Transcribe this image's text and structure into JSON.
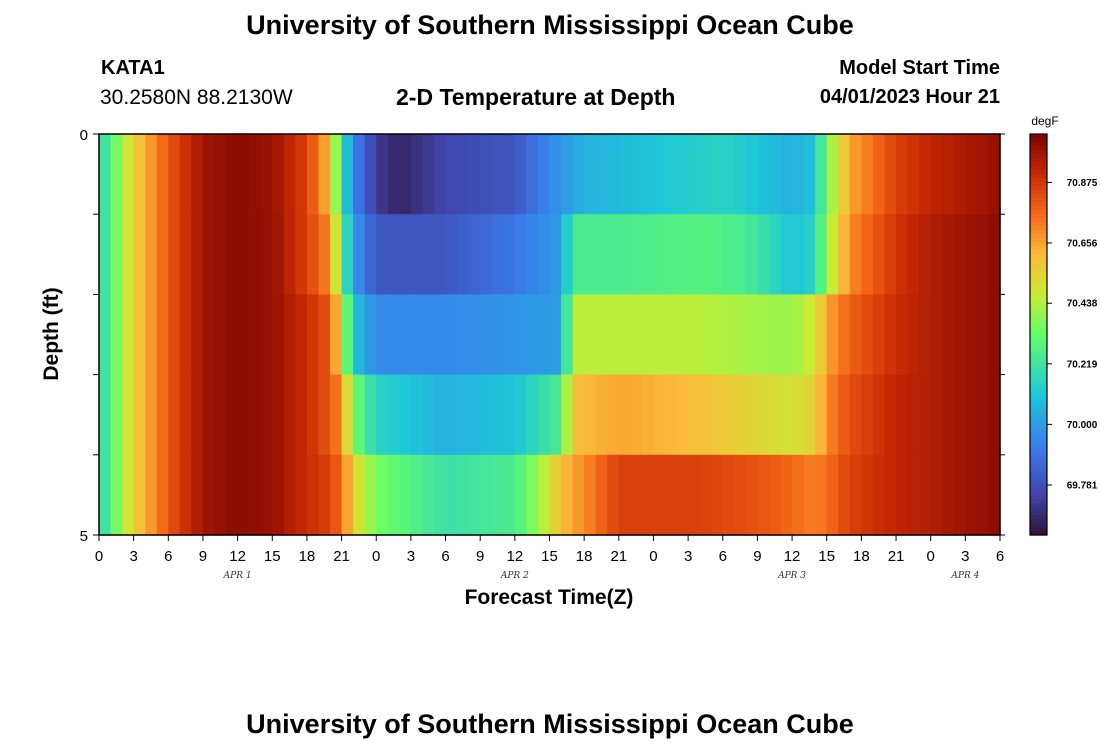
{
  "header": {
    "title": "University of Southern Mississippi Ocean Cube",
    "station": "KATA1",
    "coords": "30.2580N  88.2130W",
    "subtitle": "2-D Temperature at Depth",
    "start_label": "Model Start Time",
    "start_value": "04/01/2023 Hour 21"
  },
  "footer": {
    "title": "University of Southern Mississippi Ocean Cube"
  },
  "chart_data": {
    "type": "heatmap",
    "title": "2-D Temperature at Depth",
    "xlabel": "Forecast Time(Z)",
    "ylabel": "Depth (ft)",
    "units": "degF",
    "ylim": [
      0,
      5
    ],
    "y_tick_labels": [
      "0",
      "5"
    ],
    "x_tick_labels": [
      "0",
      "3",
      "6",
      "9",
      "12",
      "15",
      "18",
      "21",
      "0",
      "3",
      "6",
      "9",
      "12",
      "15",
      "18",
      "21",
      "0",
      "3",
      "6",
      "9",
      "12",
      "15",
      "18",
      "21",
      "0",
      "3",
      "6"
    ],
    "day_labels": [
      {
        "label": "APR 1",
        "at_tick": 4
      },
      {
        "label": "APR 2",
        "at_tick": 12
      },
      {
        "label": "APR 3",
        "at_tick": 20
      },
      {
        "label": "APR 4",
        "at_tick": 25
      }
    ],
    "hours_start": 0,
    "hours_end": 78,
    "colorbar": {
      "min": 69.6,
      "max": 71.05,
      "ticks": [
        69.781,
        70.0,
        70.219,
        70.438,
        70.656,
        70.875
      ],
      "tick_labels": [
        "69.781",
        "70.000",
        "70.219",
        "70.438",
        "70.656",
        "70.875"
      ]
    },
    "depth_layers": [
      "0-1 ft",
      "1-2 ft",
      "2-3 ft",
      "3-4 ft",
      "4-5 ft"
    ],
    "series": [
      {
        "name": "0-1 ft",
        "knots": [
          [
            0,
            70.15
          ],
          [
            3,
            70.55
          ],
          [
            6,
            70.8
          ],
          [
            9,
            70.98
          ],
          [
            12,
            71.02
          ],
          [
            15,
            70.99
          ],
          [
            18,
            70.85
          ],
          [
            20,
            70.6
          ],
          [
            21,
            70.2
          ],
          [
            22,
            69.95
          ],
          [
            24,
            69.72
          ],
          [
            26,
            69.65
          ],
          [
            30,
            69.75
          ],
          [
            36,
            69.8
          ],
          [
            39,
            69.95
          ],
          [
            42,
            70.05
          ],
          [
            48,
            70.1
          ],
          [
            54,
            70.15
          ],
          [
            60,
            70.05
          ],
          [
            62,
            70.1
          ],
          [
            63,
            70.35
          ],
          [
            65,
            70.65
          ],
          [
            69,
            70.85
          ],
          [
            72,
            70.92
          ],
          [
            78,
            71.0
          ]
        ]
      },
      {
        "name": "1-2 ft",
        "knots": [
          [
            0,
            70.15
          ],
          [
            3,
            70.55
          ],
          [
            6,
            70.8
          ],
          [
            9,
            70.98
          ],
          [
            12,
            71.02
          ],
          [
            15,
            71.0
          ],
          [
            18,
            70.85
          ],
          [
            20,
            70.7
          ],
          [
            21,
            70.3
          ],
          [
            22,
            70.0
          ],
          [
            24,
            69.8
          ],
          [
            30,
            69.8
          ],
          [
            36,
            69.9
          ],
          [
            40,
            70.0
          ],
          [
            41,
            70.25
          ],
          [
            45,
            70.25
          ],
          [
            52,
            70.28
          ],
          [
            56,
            70.25
          ],
          [
            60,
            70.1
          ],
          [
            62,
            70.15
          ],
          [
            63,
            70.4
          ],
          [
            65,
            70.7
          ],
          [
            69,
            70.88
          ],
          [
            72,
            70.95
          ],
          [
            78,
            71.02
          ]
        ]
      },
      {
        "name": "2-3 ft",
        "knots": [
          [
            0,
            70.15
          ],
          [
            3,
            70.55
          ],
          [
            6,
            70.8
          ],
          [
            9,
            70.98
          ],
          [
            12,
            71.02
          ],
          [
            15,
            71.0
          ],
          [
            18,
            70.9
          ],
          [
            20,
            70.8
          ],
          [
            21,
            70.5
          ],
          [
            22,
            70.1
          ],
          [
            24,
            69.95
          ],
          [
            30,
            69.95
          ],
          [
            36,
            69.98
          ],
          [
            40,
            70.0
          ],
          [
            41,
            70.45
          ],
          [
            45,
            70.45
          ],
          [
            52,
            70.45
          ],
          [
            60,
            70.4
          ],
          [
            62,
            70.5
          ],
          [
            63,
            70.65
          ],
          [
            65,
            70.78
          ],
          [
            69,
            70.9
          ],
          [
            72,
            70.95
          ],
          [
            78,
            71.02
          ]
        ]
      },
      {
        "name": "3-4 ft",
        "knots": [
          [
            0,
            70.15
          ],
          [
            3,
            70.55
          ],
          [
            6,
            70.8
          ],
          [
            9,
            70.98
          ],
          [
            12,
            71.02
          ],
          [
            15,
            71.0
          ],
          [
            18,
            70.9
          ],
          [
            20,
            70.8
          ],
          [
            21,
            70.7
          ],
          [
            22,
            70.35
          ],
          [
            24,
            70.15
          ],
          [
            30,
            70.05
          ],
          [
            36,
            70.1
          ],
          [
            40,
            70.25
          ],
          [
            41,
            70.6
          ],
          [
            45,
            70.65
          ],
          [
            52,
            70.6
          ],
          [
            60,
            70.5
          ],
          [
            62,
            70.55
          ],
          [
            63,
            70.7
          ],
          [
            65,
            70.82
          ],
          [
            69,
            70.92
          ],
          [
            72,
            70.95
          ],
          [
            78,
            71.02
          ]
        ]
      },
      {
        "name": "4-5 ft",
        "knots": [
          [
            0,
            70.15
          ],
          [
            3,
            70.55
          ],
          [
            6,
            70.8
          ],
          [
            9,
            70.98
          ],
          [
            12,
            71.02
          ],
          [
            15,
            71.0
          ],
          [
            18,
            70.9
          ],
          [
            20,
            70.85
          ],
          [
            21,
            70.75
          ],
          [
            22,
            70.55
          ],
          [
            24,
            70.35
          ],
          [
            30,
            70.2
          ],
          [
            36,
            70.25
          ],
          [
            38,
            70.4
          ],
          [
            40,
            70.6
          ],
          [
            42,
            70.7
          ],
          [
            45,
            70.85
          ],
          [
            52,
            70.85
          ],
          [
            58,
            70.8
          ],
          [
            62,
            70.72
          ],
          [
            63,
            70.75
          ],
          [
            65,
            70.85
          ],
          [
            69,
            70.92
          ],
          [
            72,
            70.95
          ],
          [
            78,
            71.02
          ]
        ]
      }
    ]
  }
}
